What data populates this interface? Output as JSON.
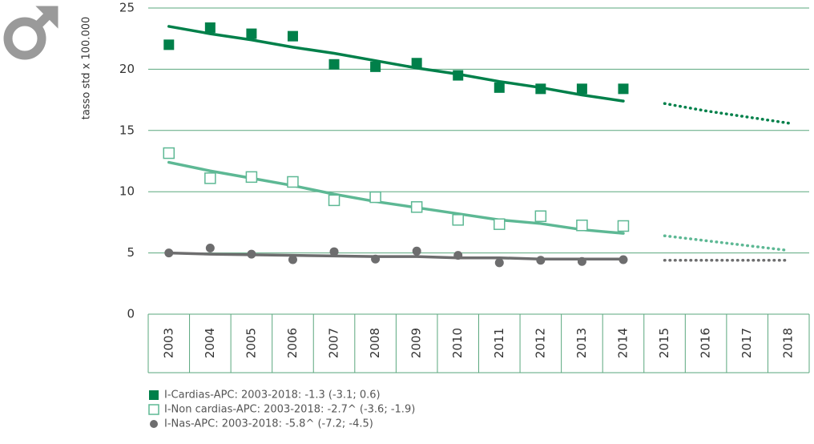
{
  "chart_data": {
    "type": "line",
    "ylabel": "tasso std x 100.000",
    "categories": [
      "2003",
      "2004",
      "2005",
      "2006",
      "2007",
      "2008",
      "2009",
      "2010",
      "2011",
      "2012",
      "2013",
      "2014",
      "2015",
      "2016",
      "2017",
      "2018"
    ],
    "ylim": [
      0,
      25
    ],
    "yticks": [
      0,
      5,
      10,
      15,
      20,
      25
    ],
    "grid": true,
    "grid_color": "#5aa77e",
    "series": [
      {
        "name": "I-Cardias-APC: 2003-2018: -1.3 (-3.1; 0.6)",
        "color": "#00804a",
        "marker": "square-filled",
        "values": [
          22.0,
          23.4,
          22.9,
          22.7,
          20.4,
          20.2,
          20.5,
          19.5,
          18.5,
          18.4,
          18.4,
          18.4,
          null,
          null,
          null,
          null
        ],
        "fit": [
          23.5,
          22.9,
          22.4,
          21.8,
          21.3,
          20.7,
          20.1,
          19.6,
          19.0,
          18.5,
          17.9,
          17.4,
          null,
          null,
          null,
          null
        ],
        "projection": [
          null,
          null,
          null,
          null,
          null,
          null,
          null,
          null,
          null,
          null,
          null,
          null,
          17.2,
          16.6,
          16.1,
          15.6
        ]
      },
      {
        "name": "I-Non cardias-APC: 2003-2018: -2.7^ (-3.6; -1.9)",
        "color": "#5db894",
        "marker": "square-open",
        "values": [
          13.15,
          11.1,
          11.2,
          10.8,
          9.3,
          9.55,
          8.75,
          7.7,
          7.35,
          8.0,
          7.25,
          7.2,
          null,
          null,
          null,
          null
        ],
        "fit": [
          12.4,
          11.7,
          11.1,
          10.5,
          9.8,
          9.2,
          8.7,
          8.2,
          7.7,
          7.4,
          6.9,
          6.6,
          null,
          null,
          null,
          null
        ],
        "projection": [
          null,
          null,
          null,
          null,
          null,
          null,
          null,
          null,
          null,
          null,
          null,
          null,
          6.4,
          6.0,
          5.6,
          5.2
        ]
      },
      {
        "name": "I-Nas-APC: 2003-2018: -5.8^ (-7.2; -4.5)",
        "color": "#6d6d6e",
        "marker": "circle",
        "values": [
          5.0,
          5.4,
          4.9,
          4.45,
          5.1,
          4.5,
          5.15,
          4.8,
          4.2,
          4.4,
          4.3,
          4.45,
          null,
          null,
          null,
          null
        ],
        "fit": [
          5.0,
          4.9,
          4.85,
          4.8,
          4.75,
          4.7,
          4.7,
          4.6,
          4.6,
          4.5,
          4.5,
          4.5,
          null,
          null,
          null,
          null
        ],
        "projection": [
          null,
          null,
          null,
          null,
          null,
          null,
          null,
          null,
          null,
          null,
          null,
          null,
          4.4,
          4.4,
          4.4,
          4.4
        ]
      }
    ]
  }
}
